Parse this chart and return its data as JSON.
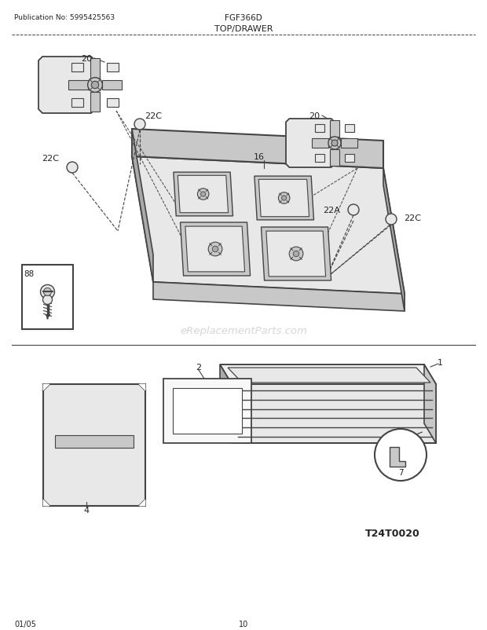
{
  "title": "TOP/DRAWER",
  "pub_no": "Publication No: 5995425563",
  "model": "FGF366D",
  "date": "01/05",
  "page": "10",
  "watermark": "eReplacementParts.com",
  "code": "T24T0020",
  "bg_color": "#ffffff",
  "line_color": "#444444",
  "light_gray": "#e8e8e8",
  "mid_gray": "#c8c8c8",
  "dark_gray": "#aaaaaa",
  "text_color": "#222222"
}
